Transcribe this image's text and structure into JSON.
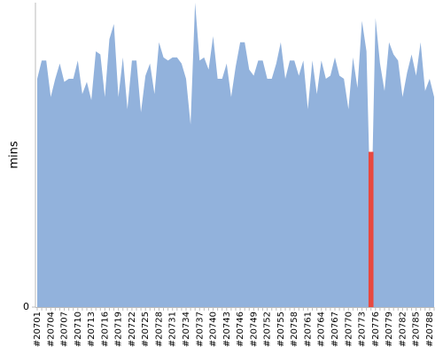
{
  "chart_data": {
    "type": "area",
    "y_label": "mins",
    "categories": [
      "#20701",
      null,
      null,
      "#20704",
      null,
      null,
      "#20707",
      null,
      null,
      "#20710",
      null,
      null,
      "#20713",
      null,
      null,
      "#20716",
      null,
      null,
      "#20719",
      null,
      null,
      "#20722",
      null,
      null,
      "#20725",
      null,
      null,
      "#20728",
      null,
      null,
      "#20731",
      null,
      null,
      "#20734",
      null,
      null,
      "#20737",
      null,
      null,
      "#20740",
      null,
      null,
      "#20743",
      null,
      null,
      "#20746",
      null,
      null,
      "#20749",
      null,
      null,
      "#20752",
      null,
      null,
      "#20755",
      null,
      null,
      "#20758",
      null,
      null,
      "#20761",
      null,
      null,
      "#20764",
      null,
      null,
      "#20767",
      null,
      null,
      "#20770",
      null,
      null,
      "#20773",
      null,
      null,
      "#20776",
      null,
      null,
      "#20779",
      null,
      null,
      "#20782",
      null,
      null,
      "#20785",
      null,
      null,
      "#20788",
      null
    ],
    "series": [
      {
        "color": "#92b2dc",
        "values": [
          75,
          81,
          81,
          69,
          75,
          80,
          74,
          75,
          75,
          81,
          70,
          74,
          68,
          84,
          83,
          69,
          88,
          93,
          69,
          82,
          65,
          81,
          81,
          64,
          76,
          80,
          70,
          87,
          82,
          81,
          82,
          82,
          80,
          75,
          60,
          100,
          81,
          82,
          78,
          89,
          75,
          75,
          80,
          69,
          79,
          87,
          87,
          78,
          76,
          81,
          81,
          75,
          75,
          80,
          87,
          75,
          81,
          81,
          76,
          81,
          65,
          81,
          70,
          81,
          75,
          76,
          82,
          76,
          75,
          65,
          82,
          72,
          94,
          84,
          25,
          95,
          80,
          71,
          87,
          83,
          81,
          69,
          77,
          83,
          76,
          87,
          71,
          75,
          69
        ]
      },
      {
        "color": "#e8483f",
        "values": [
          null,
          null,
          null,
          null,
          null,
          null,
          null,
          null,
          null,
          null,
          null,
          null,
          null,
          null,
          null,
          null,
          null,
          null,
          null,
          null,
          null,
          null,
          null,
          null,
          null,
          null,
          null,
          null,
          null,
          null,
          null,
          null,
          null,
          null,
          null,
          null,
          null,
          null,
          null,
          null,
          null,
          null,
          null,
          null,
          null,
          null,
          null,
          null,
          null,
          null,
          null,
          null,
          null,
          null,
          null,
          null,
          null,
          null,
          null,
          null,
          null,
          null,
          null,
          null,
          null,
          null,
          null,
          null,
          null,
          null,
          null,
          null,
          null,
          null,
          51,
          null,
          null,
          null,
          null,
          null,
          null,
          null,
          null,
          null,
          null,
          null,
          null,
          null,
          null
        ]
      }
    ],
    "ylim": [
      0,
      100
    ],
    "yticks": [
      0
    ]
  }
}
